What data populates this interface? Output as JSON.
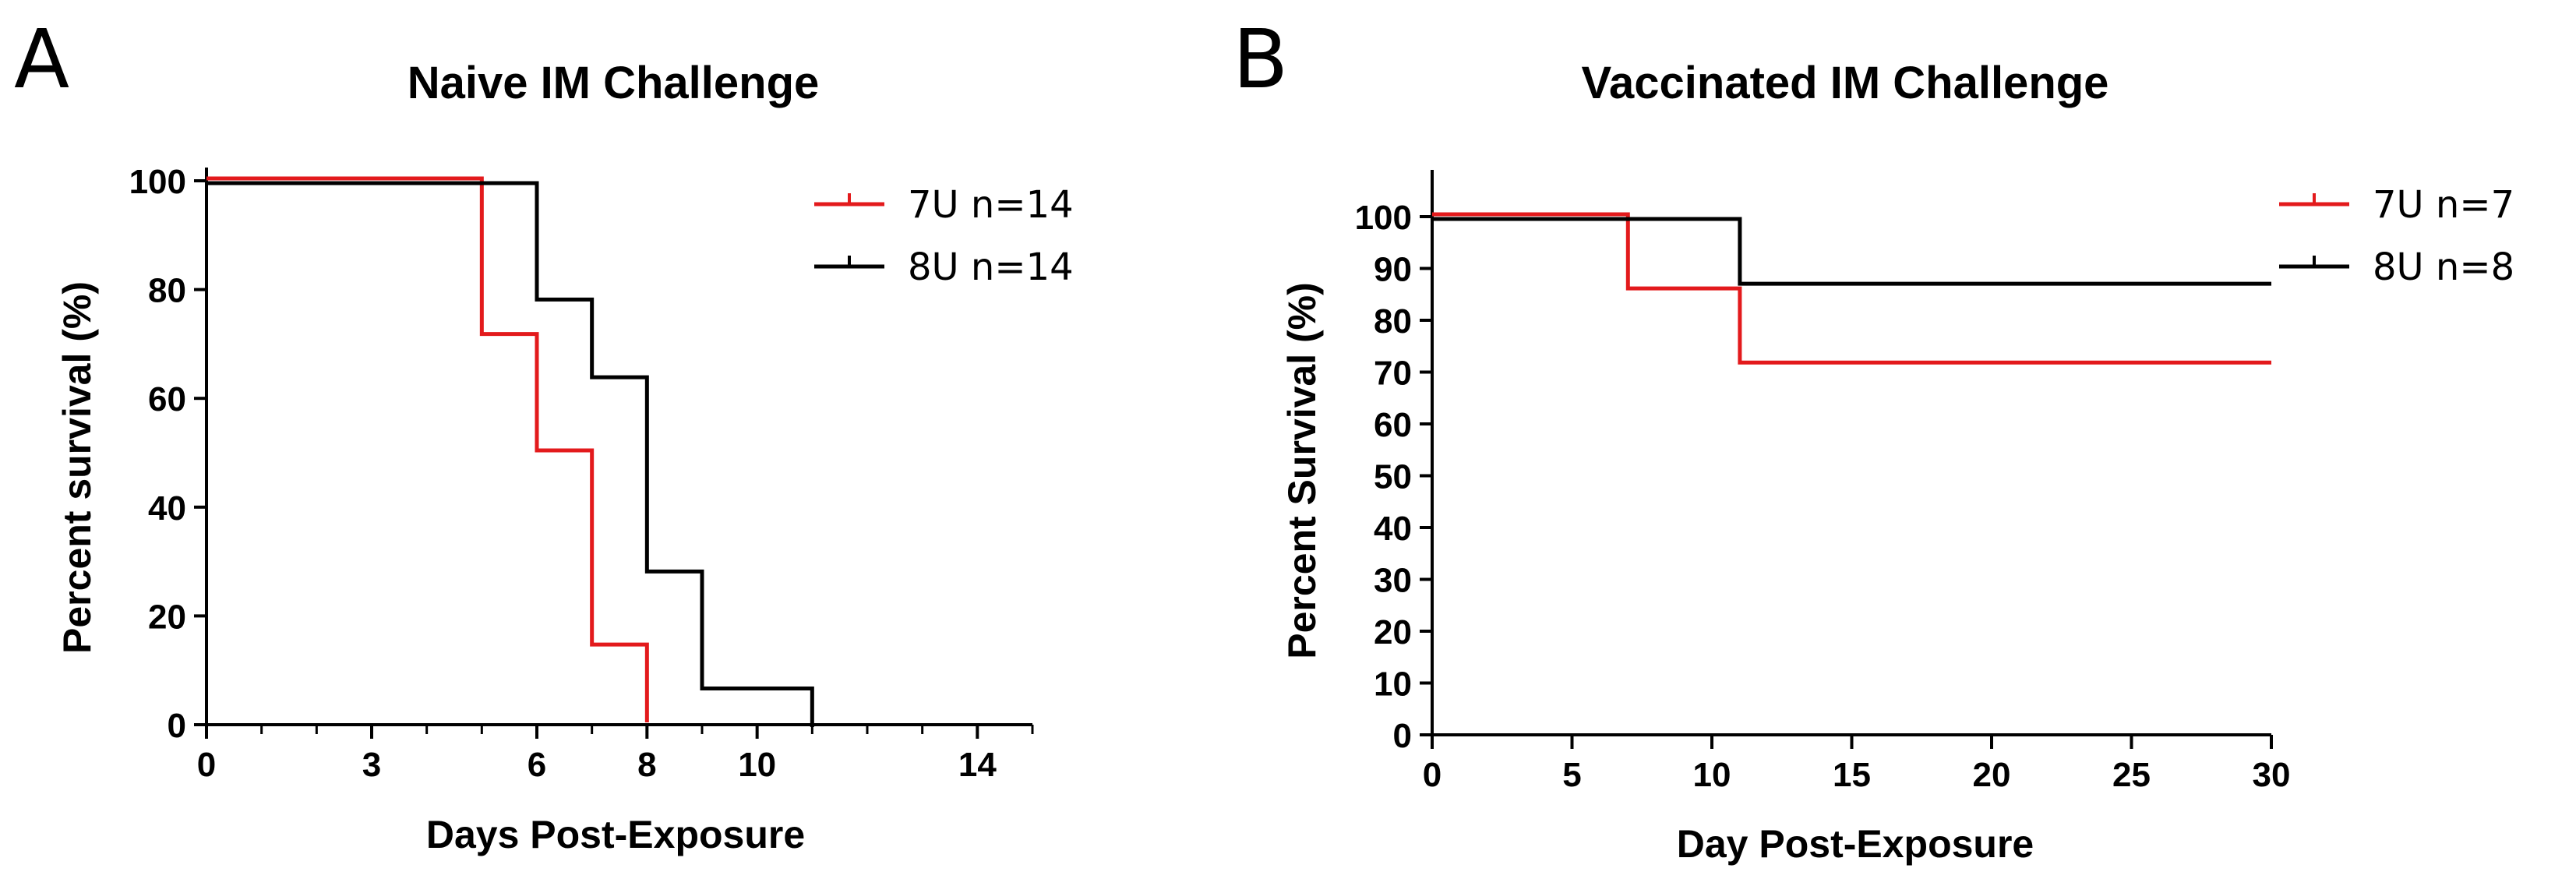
{
  "chart_data": [
    {
      "type": "line",
      "step": true,
      "panel_label": "A",
      "title": "Naive IM Challenge",
      "xlabel": "Days Post-Exposure",
      "ylabel": "Percent survival (%)",
      "xlim": [
        0,
        15
      ],
      "ylim": [
        0,
        100
      ],
      "x_tick_labels": [
        0,
        3,
        6,
        8,
        10,
        14
      ],
      "x_minor_ticks": [
        0,
        1,
        2,
        3,
        4,
        5,
        6,
        7,
        8,
        9,
        10,
        11,
        12,
        13,
        14,
        15
      ],
      "y_ticks": [
        0,
        20,
        40,
        60,
        80,
        100
      ],
      "grid": false,
      "legend": "top-right",
      "series": [
        {
          "name": "7U n=14",
          "color": "#e31a1c",
          "x": [
            0,
            5,
            6,
            7,
            8
          ],
          "y": [
            100,
            71.4,
            50,
            14.3,
            0
          ]
        },
        {
          "name": "8U n=14",
          "color": "#000000",
          "x": [
            0,
            6,
            7,
            8,
            9,
            11
          ],
          "y": [
            100,
            78.6,
            64.3,
            28.6,
            7.1,
            0
          ]
        }
      ]
    },
    {
      "type": "line",
      "step": true,
      "panel_label": "B",
      "title": "Vaccinated IM Challenge",
      "xlabel": "Day Post-Exposure",
      "ylabel": "Percent Survival (%)",
      "xlim": [
        0,
        30
      ],
      "ylim": [
        0,
        100
      ],
      "x_tick_labels": [
        0,
        5,
        10,
        15,
        20,
        25,
        30
      ],
      "y_ticks": [
        0,
        10,
        20,
        30,
        40,
        50,
        60,
        70,
        80,
        90,
        100
      ],
      "grid": false,
      "legend": "top-right",
      "series": [
        {
          "name": "7U n=7",
          "color": "#e31a1c",
          "x": [
            0,
            7,
            11,
            30
          ],
          "y": [
            100,
            85.7,
            71.4,
            71.4
          ]
        },
        {
          "name": "8U n=8",
          "color": "#000000",
          "x": [
            0,
            11,
            30
          ],
          "y": [
            100,
            87.5,
            87.5
          ]
        }
      ]
    }
  ]
}
